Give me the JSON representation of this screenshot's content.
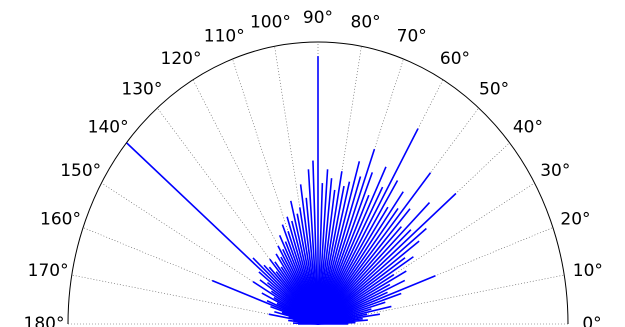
{
  "chart_data": {
    "type": "polar-stem",
    "series": [
      {
        "color": "#0000ff",
        "theta": [
          0,
          2,
          4,
          6,
          8,
          10,
          12,
          14,
          16,
          18,
          20,
          22,
          24,
          26,
          28,
          30,
          32,
          34,
          36,
          38,
          40,
          42,
          44,
          46,
          48,
          50,
          52,
          54,
          56,
          58,
          60,
          62,
          64,
          66,
          68,
          70,
          72,
          74,
          76,
          78,
          80,
          82,
          84,
          86,
          88,
          90,
          92,
          94,
          96,
          98,
          100,
          102,
          104,
          106,
          108,
          110,
          112,
          114,
          116,
          118,
          120,
          122,
          124,
          126,
          128,
          130,
          132,
          134,
          136,
          138,
          140,
          142,
          144,
          146,
          148,
          150,
          152,
          154,
          156,
          158,
          160,
          162,
          164,
          166,
          168,
          170,
          172,
          174,
          176,
          178,
          180
        ],
        "values": [
          0.12,
          0.15,
          0.2,
          0.18,
          0.25,
          0.2,
          0.3,
          0.22,
          0.28,
          0.35,
          0.5,
          0.3,
          0.38,
          0.32,
          0.4,
          0.35,
          0.45,
          0.42,
          0.5,
          0.55,
          0.72,
          0.5,
          0.62,
          0.48,
          0.55,
          0.7,
          0.52,
          0.58,
          0.5,
          0.6,
          0.8,
          0.55,
          0.62,
          0.5,
          0.58,
          0.66,
          0.55,
          0.6,
          0.52,
          0.5,
          0.55,
          0.48,
          0.52,
          0.55,
          0.5,
          0.95,
          0.58,
          0.55,
          0.45,
          0.5,
          0.42,
          0.4,
          0.45,
          0.38,
          0.4,
          0.35,
          0.38,
          0.32,
          0.35,
          0.3,
          0.32,
          0.28,
          0.3,
          0.25,
          0.28,
          0.3,
          0.25,
          0.28,
          0.3,
          0.35,
          1.0,
          0.3,
          0.25,
          0.28,
          0.22,
          0.3,
          0.2,
          0.25,
          0.18,
          0.22,
          0.45,
          0.2,
          0.15,
          0.18,
          0.12,
          0.2,
          0.1,
          0.12,
          0.08,
          0.1,
          0.08
        ]
      }
    ],
    "thetalim": [
      0,
      180
    ],
    "rlim": [
      0,
      1
    ],
    "thetaticks": [
      {
        "value": 0,
        "label": "0°"
      },
      {
        "value": 10,
        "label": "10°"
      },
      {
        "value": 20,
        "label": "20°"
      },
      {
        "value": 30,
        "label": "30°"
      },
      {
        "value": 40,
        "label": "40°"
      },
      {
        "value": 50,
        "label": "50°"
      },
      {
        "value": 60,
        "label": "60°"
      },
      {
        "value": 70,
        "label": "70°"
      },
      {
        "value": 80,
        "label": "80°"
      },
      {
        "value": 90,
        "label": "90°"
      },
      {
        "value": 100,
        "label": "100°"
      },
      {
        "value": 110,
        "label": "110°"
      },
      {
        "value": 120,
        "label": "120°"
      },
      {
        "value": 130,
        "label": "130°"
      },
      {
        "value": 140,
        "label": "140°"
      },
      {
        "value": 150,
        "label": "150°"
      },
      {
        "value": 160,
        "label": "160°"
      },
      {
        "value": 170,
        "label": "170°"
      },
      {
        "value": 180,
        "label": "180°"
      }
    ],
    "grid": true
  }
}
